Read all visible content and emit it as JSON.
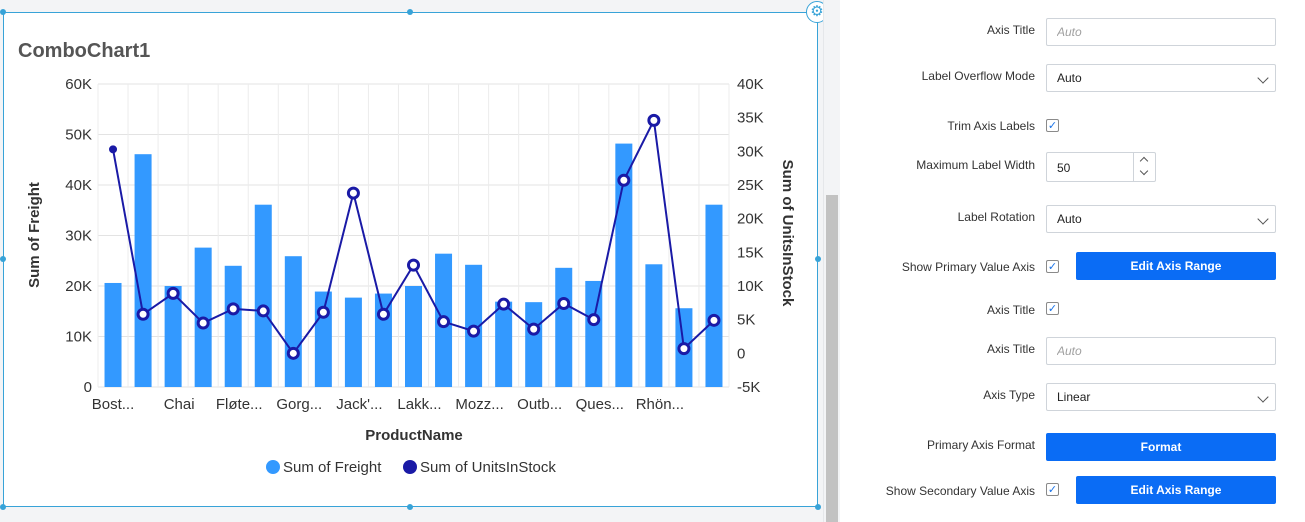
{
  "widget": {
    "title": "ComboChart1"
  },
  "chart_data": {
    "type": "bar",
    "title": "ComboChart1",
    "xlabel": "ProductName",
    "ylabel": "Sum of Freight",
    "y2label": "Sum of UnitsInStock",
    "ylim": [
      0,
      60000
    ],
    "y2lim": [
      -5000,
      40000
    ],
    "yticks": [
      "0",
      "10K",
      "20K",
      "30K",
      "40K",
      "50K",
      "60K"
    ],
    "y2ticks": [
      "-5K",
      "0",
      "5K",
      "10K",
      "15K",
      "20K",
      "25K",
      "30K",
      "35K",
      "40K"
    ],
    "tick_labels": [
      "Bost...",
      "Chai",
      "Fløte...",
      "Gorg...",
      "Jack'...",
      "Lakk...",
      "Mozz...",
      "Outb...",
      "Ques...",
      "Rhön..."
    ],
    "grid": true,
    "legend_position": "bottom",
    "series": [
      {
        "name": "Sum of Freight",
        "type": "bar",
        "color": "#3399ff",
        "values": [
          20600,
          46100,
          20000,
          27600,
          24000,
          36100,
          25900,
          18900,
          17700,
          18500,
          20000,
          26400,
          24200,
          16900,
          16800,
          23600,
          21000,
          48200,
          24300,
          15600,
          36100
        ]
      },
      {
        "name": "Sum of UnitsInStock",
        "type": "line",
        "color": "#1a1aa6",
        "values": [
          30300,
          5800,
          8900,
          4500,
          6600,
          6300,
          0,
          6100,
          23800,
          5800,
          13100,
          4700,
          3300,
          7300,
          3600,
          7400,
          5000,
          25700,
          34600,
          700,
          4900
        ]
      }
    ]
  },
  "props": {
    "axis_title_label": "Axis Title",
    "axis_title_placeholder": "Auto",
    "label_overflow_label": "Label Overflow Mode",
    "label_overflow_value": "Auto",
    "trim_axis_label": "Trim Axis Labels",
    "max_label_width_label": "Maximum Label Width",
    "max_label_width_value": "50",
    "label_rotation_label": "Label Rotation",
    "label_rotation_value": "Auto",
    "show_primary_label": "Show Primary Value Axis",
    "edit_axis_range_label": "Edit Axis Range",
    "axis_title2_label": "Axis Title",
    "axis_title3_label": "Axis Title",
    "axis_title3_placeholder": "Auto",
    "axis_type_label": "Axis Type",
    "axis_type_value": "Linear",
    "primary_format_label": "Primary Axis Format",
    "format_label": "Format",
    "show_secondary_label": "Show Secondary Value Axis",
    "edit_axis_range2_label": "Edit Axis Range",
    "check_glyph": "✓"
  },
  "icons": {
    "settings": "gear-icon"
  },
  "colors": {
    "accent": "#0a6cf5",
    "bar": "#3399ff",
    "line": "#1a1aa6",
    "selection": "#38a3d8"
  }
}
